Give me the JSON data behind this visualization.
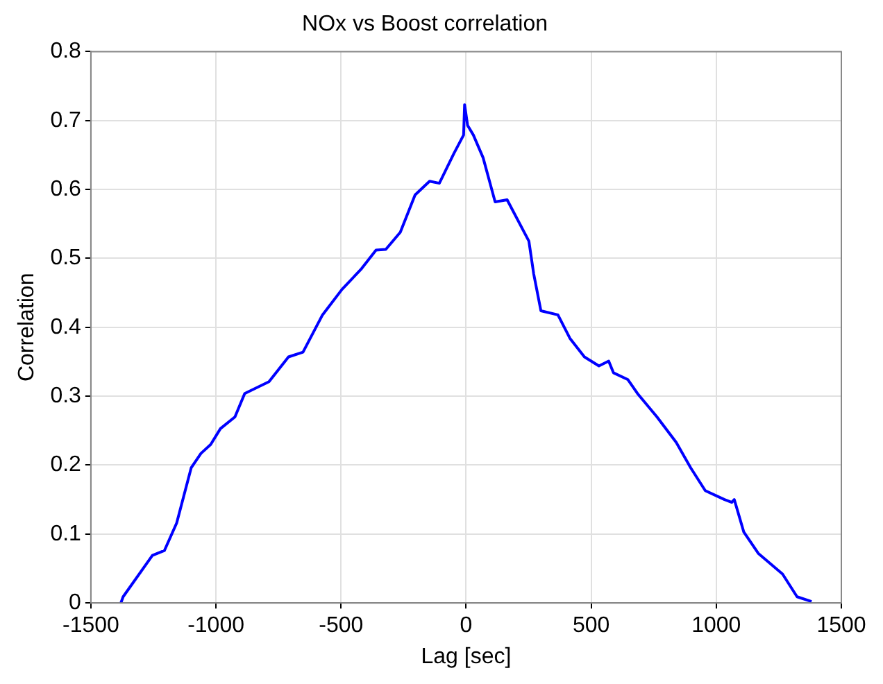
{
  "chart_data": {
    "type": "line",
    "title": "NOx vs Boost correlation",
    "xlabel": "Lag [sec]",
    "ylabel": "Correlation",
    "xlim": [
      -1500,
      1500
    ],
    "xticks": [
      -1500,
      -1000,
      -500,
      0,
      500,
      1000,
      1500
    ],
    "ylim": [
      0,
      0.8
    ],
    "yticks": [
      0,
      0.1,
      0.2,
      0.3,
      0.4,
      0.5,
      0.6,
      0.7,
      0.8
    ],
    "grid": true,
    "legend": false,
    "marker": "none",
    "line_style": "solid",
    "series": [
      {
        "color": "#0000ff",
        "x": [
          -1380,
          -1371,
          -1254,
          -1206,
          -1157,
          -1099,
          -1060,
          -1021,
          -982,
          -924,
          -885,
          -788,
          -710,
          -652,
          -574,
          -496,
          -418,
          -360,
          -321,
          -263,
          -204,
          -146,
          -107,
          -49,
          -10,
          -6,
          6,
          29,
          68,
          116,
          164,
          251,
          270,
          299,
          367,
          415,
          473,
          531,
          570,
          589,
          647,
          685,
          763,
          840,
          898,
          956,
          1033,
          1062,
          1072,
          1110,
          1168,
          1265,
          1323,
          1381
        ],
        "values": [
          0,
          0.009,
          0.069,
          0.076,
          0.116,
          0.196,
          0.217,
          0.23,
          0.253,
          0.27,
          0.304,
          0.321,
          0.357,
          0.364,
          0.418,
          0.455,
          0.485,
          0.512,
          0.513,
          0.538,
          0.592,
          0.612,
          0.609,
          0.652,
          0.679,
          0.723,
          0.693,
          0.679,
          0.646,
          0.582,
          0.585,
          0.525,
          0.478,
          0.424,
          0.418,
          0.384,
          0.357,
          0.344,
          0.351,
          0.334,
          0.324,
          0.304,
          0.27,
          0.233,
          0.196,
          0.163,
          0.15,
          0.146,
          0.15,
          0.103,
          0.072,
          0.042,
          0.009,
          0.002
        ]
      }
    ]
  }
}
